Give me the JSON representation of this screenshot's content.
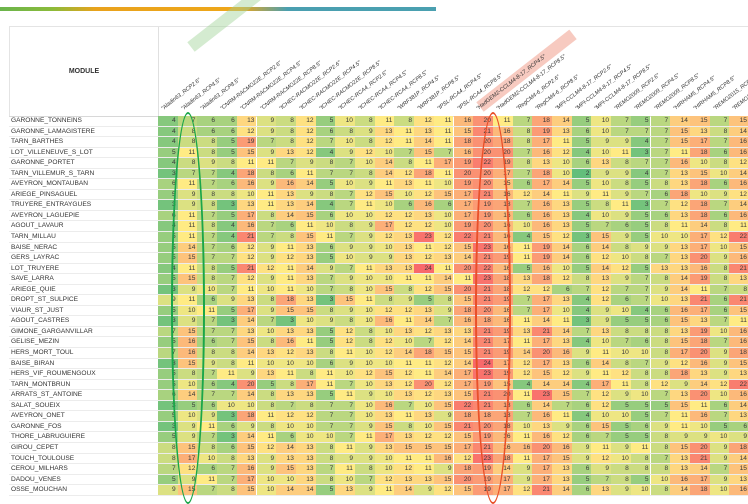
{
  "header": {
    "module_label": "MODULE"
  },
  "columns": [
    "\"Aladin63_RCP2.6\"",
    "\"Aladin63_RCP4.5\"",
    "\"Aladin63_RCP8.5\"",
    "\"CNRM-RACMO22E_RCP2.6\"",
    "\"CNRM-RACMO22E_RCP4.5\"",
    "\"CNRM-RACMO22E_RCP8.5\"",
    "\"ICHEC-RACMO22E_RCP2.6\"",
    "\"ICHEC-RACMO22E_RCP4.5\"",
    "\"ICHEC-RACMO22E_RCP8.5\"",
    "\"ICHEC-RCA4_RCP2.6\"",
    "\"ICHEC-RCA4_RCP4.5\"",
    "\"ICHEC-RCA4_RCP8.5\"",
    "\"WRF381P_RCP4.5\"",
    "\"WRF381P_RCP8.5\"",
    "\"IPSL-RCA4_RCP4.5\"",
    "\"IPSL-RCA4_RCP8.5\"",
    "\"HadGEM2-CCLM4-8-17_RCP4.5\"",
    "\"HadGEM2-CCLM4-8-17_RCP8.5\"",
    "\"RegCM4-6_RCP2.6\"",
    "\"RegCM4-6_RCP8.5\"",
    "\"MPI-CCLM4-8-17_RCP2.6\"",
    "\"MPI-CCLM4-8-17_RCP4.5\"",
    "\"MPI-CCLM4-8-17_RCP8.5\"",
    "\"REMO2009_RCP2.6\"",
    "\"REMO2009_RCP4.5\"",
    "\"REMO2009_RCP8.5\"",
    "\"HIRHAM5_RCP4.5\"",
    "\"HIRHAM5_RCP8.5\"",
    "\"REMO2015_RCP2.6\"",
    "\"REMO2015_RCP8.5\""
  ],
  "highlights": {
    "green_column_index": 1,
    "red_column_index": 17
  },
  "colors": {
    "low": "#63be7b",
    "mid": "#ffeb84",
    "high": "#f8696b"
  },
  "rows": [
    {
      "name": "GARONNE_TONNEINS",
      "values": [
        4,
        7,
        6,
        6,
        13,
        9,
        8,
        12,
        5,
        10,
        8,
        11,
        8,
        12,
        11,
        16,
        20,
        11,
        7,
        18,
        14,
        5,
        10,
        7,
        5,
        7,
        14,
        15,
        7,
        15
      ]
    },
    {
      "name": "GARONNE_LAMAGISTERE",
      "values": [
        4,
        8,
        6,
        6,
        12,
        9,
        8,
        12,
        6,
        8,
        9,
        13,
        11,
        13,
        11,
        15,
        21,
        16,
        8,
        19,
        13,
        6,
        10,
        7,
        7,
        7,
        15,
        13,
        8,
        14
      ]
    },
    {
      "name": "TARN_BARTHES",
      "values": [
        4,
        8,
        8,
        5,
        19,
        7,
        8,
        12,
        7,
        10,
        8,
        12,
        11,
        14,
        11,
        18,
        20,
        18,
        8,
        17,
        11,
        5,
        9,
        9,
        4,
        7,
        15,
        17,
        7,
        16
      ]
    },
    {
      "name": "LOT_VILLENEUVE_S_LOT",
      "values": [
        5,
        11,
        8,
        5,
        15,
        9,
        13,
        12,
        4,
        9,
        12,
        10,
        7,
        15,
        7,
        16,
        20,
        20,
        7,
        16,
        12,
        4,
        10,
        11,
        3,
        7,
        11,
        18,
        6,
        16
      ]
    },
    {
      "name": "GARONNE_PORTET",
      "values": [
        4,
        8,
        9,
        8,
        11,
        11,
        7,
        9,
        8,
        7,
        10,
        14,
        8,
        11,
        17,
        19,
        22,
        19,
        8,
        13,
        10,
        6,
        13,
        8,
        7,
        7,
        16,
        10,
        8,
        12
      ]
    },
    {
      "name": "TARN_VILLEMUR_S_TARN",
      "values": [
        3,
        7,
        7,
        4,
        18,
        8,
        6,
        11,
        7,
        7,
        8,
        14,
        12,
        18,
        11,
        20,
        20,
        17,
        7,
        18,
        10,
        2,
        9,
        9,
        4,
        7,
        13,
        15,
        10,
        14
      ]
    },
    {
      "name": "AVEYRON_MONTAUBAN",
      "values": [
        6,
        11,
        7,
        6,
        16,
        9,
        16,
        14,
        5,
        10,
        9,
        11,
        13,
        11,
        10,
        19,
        20,
        15,
        6,
        17,
        14,
        5,
        10,
        8,
        5,
        8,
        13,
        18,
        6,
        16
      ]
    },
    {
      "name": "ARIEGE_PINSAGUEL",
      "values": [
        5,
        9,
        8,
        8,
        10,
        11,
        13,
        9,
        8,
        7,
        12,
        15,
        10,
        12,
        15,
        17,
        21,
        16,
        12,
        14,
        11,
        9,
        11,
        9,
        7,
        6,
        18,
        10,
        9,
        12
      ]
    },
    {
      "name": "TRUYERE_ENTRAYGUES",
      "values": [
        3,
        9,
        8,
        3,
        13,
        11,
        13,
        14,
        4,
        7,
        11,
        10,
        6,
        16,
        6,
        17,
        19,
        18,
        7,
        16,
        13,
        5,
        8,
        11,
        3,
        7,
        12,
        18,
        7,
        14
      ]
    },
    {
      "name": "AVEYRON_LAGUEPIE",
      "values": [
        6,
        11,
        7,
        5,
        17,
        8,
        14,
        15,
        6,
        10,
        10,
        12,
        12,
        13,
        10,
        17,
        19,
        16,
        6,
        16,
        13,
        4,
        10,
        9,
        5,
        6,
        13,
        18,
        6,
        16
      ]
    },
    {
      "name": "AGOUT_LAVAUR",
      "values": [
        4,
        11,
        8,
        4,
        16,
        7,
        6,
        11,
        10,
        8,
        9,
        17,
        12,
        12,
        10,
        19,
        20,
        16,
        10,
        16,
        13,
        5,
        7,
        6,
        5,
        8,
        11,
        14,
        8,
        11
      ]
    },
    {
      "name": "TARN_MILLAU",
      "values": [
        5,
        11,
        7,
        4,
        21,
        7,
        8,
        15,
        11,
        7,
        9,
        12,
        13,
        23,
        12,
        22,
        21,
        16,
        4,
        15,
        12,
        3,
        15,
        9,
        5,
        10,
        10,
        17,
        12,
        22
      ]
    },
    {
      "name": "BAISE_NERAC",
      "values": [
        5,
        14,
        7,
        6,
        12,
        9,
        11,
        13,
        6,
        9,
        9,
        10,
        13,
        11,
        12,
        15,
        23,
        16,
        11,
        19,
        14,
        6,
        14,
        8,
        9,
        9,
        13,
        17,
        10,
        15
      ]
    },
    {
      "name": "GERS_LAYRAC",
      "values": [
        5,
        15,
        7,
        7,
        12,
        9,
        12,
        13,
        5,
        10,
        9,
        9,
        13,
        12,
        13,
        14,
        21,
        19,
        11,
        19,
        14,
        6,
        12,
        10,
        8,
        7,
        13,
        20,
        9,
        16
      ]
    },
    {
      "name": "LOT_TRUYERE",
      "values": [
        4,
        11,
        8,
        5,
        21,
        12,
        11,
        14,
        9,
        7,
        11,
        13,
        13,
        24,
        11,
        20,
        22,
        16,
        5,
        16,
        10,
        5,
        14,
        12,
        5,
        13,
        13,
        16,
        8,
        21
      ]
    },
    {
      "name": "SAVE_LARRA",
      "values": [
        5,
        15,
        8,
        7,
        12,
        9,
        11,
        13,
        7,
        9,
        10,
        10,
        11,
        11,
        14,
        11,
        23,
        18,
        13,
        18,
        12,
        8,
        13,
        9,
        7,
        8,
        14,
        19,
        8,
        13
      ]
    },
    {
      "name": "ARIEGE_QUIE",
      "values": [
        3,
        9,
        10,
        7,
        11,
        10,
        11,
        10,
        7,
        8,
        10,
        15,
        8,
        12,
        15,
        20,
        21,
        18,
        12,
        12,
        6,
        7,
        12,
        7,
        7,
        9,
        14,
        11,
        7,
        8
      ]
    },
    {
      "name": "DROPT_ST_SULPICE",
      "values": [
        9,
        11,
        6,
        9,
        13,
        8,
        18,
        13,
        3,
        15,
        11,
        8,
        9,
        5,
        8,
        15,
        21,
        19,
        7,
        17,
        13,
        4,
        12,
        6,
        7,
        10,
        13,
        21,
        6,
        21
      ]
    },
    {
      "name": "VIAUR_ST_JUST",
      "values": [
        5,
        10,
        11,
        5,
        17,
        9,
        15,
        15,
        8,
        9,
        10,
        12,
        12,
        13,
        9,
        18,
        20,
        16,
        7,
        17,
        10,
        4,
        9,
        10,
        4,
        6,
        16,
        17,
        6,
        15
      ]
    },
    {
      "name": "AGOUT_CASTRES",
      "values": [
        3,
        9,
        7,
        3,
        14,
        7,
        3,
        10,
        9,
        8,
        10,
        16,
        11,
        14,
        7,
        16,
        18,
        16,
        11,
        14,
        11,
        3,
        9,
        5,
        5,
        6,
        15,
        13,
        7,
        11
      ]
    },
    {
      "name": "GIMONE_GARGANVILLAR",
      "values": [
        7,
        15,
        7,
        7,
        13,
        10,
        13,
        13,
        5,
        12,
        8,
        10,
        13,
        12,
        13,
        13,
        21,
        19,
        13,
        21,
        14,
        7,
        13,
        8,
        8,
        8,
        13,
        19,
        10,
        16
      ]
    },
    {
      "name": "GELISE_MEZIN",
      "values": [
        5,
        16,
        6,
        7,
        15,
        8,
        16,
        11,
        5,
        12,
        8,
        12,
        10,
        7,
        12,
        14,
        21,
        17,
        11,
        17,
        13,
        4,
        10,
        7,
        6,
        8,
        15,
        18,
        7,
        16
      ]
    },
    {
      "name": "HERS_MORT_TOUL",
      "values": [
        7,
        16,
        8,
        8,
        14,
        13,
        12,
        13,
        8,
        11,
        10,
        12,
        14,
        18,
        15,
        15,
        21,
        19,
        14,
        20,
        16,
        9,
        11,
        10,
        10,
        8,
        17,
        20,
        9,
        18
      ]
    },
    {
      "name": "BAISE_BIRAN",
      "values": [
        3,
        15,
        9,
        8,
        11,
        10,
        10,
        10,
        6,
        9,
        10,
        10,
        11,
        11,
        12,
        14,
        24,
        17,
        12,
        17,
        13,
        6,
        14,
        8,
        7,
        9,
        12,
        16,
        9,
        15
      ]
    },
    {
      "name": "HERS_VIF_ROUMENGOUX",
      "values": [
        5,
        8,
        7,
        11,
        9,
        13,
        11,
        8,
        11,
        10,
        12,
        15,
        12,
        11,
        14,
        17,
        23,
        19,
        12,
        15,
        12,
        9,
        11,
        12,
        8,
        8,
        18,
        13,
        9,
        13
      ]
    },
    {
      "name": "TARN_MONTBRUN",
      "values": [
        5,
        10,
        6,
        4,
        20,
        5,
        8,
        17,
        11,
        7,
        10,
        13,
        12,
        20,
        12,
        17,
        19,
        15,
        4,
        14,
        14,
        4,
        17,
        11,
        8,
        12,
        9,
        14,
        12,
        22
      ]
    },
    {
      "name": "ARRATS_ST_ANTOINE",
      "values": [
        6,
        14,
        7,
        7,
        14,
        8,
        13,
        13,
        5,
        11,
        9,
        10,
        13,
        12,
        13,
        15,
        21,
        20,
        11,
        23,
        15,
        7,
        12,
        9,
        10,
        7,
        13,
        20,
        10,
        16
      ]
    },
    {
      "name": "SALAT_SOUEIX",
      "values": [
        3,
        5,
        6,
        10,
        10,
        8,
        7,
        8,
        7,
        7,
        10,
        16,
        7,
        10,
        15,
        22,
        21,
        18,
        6,
        14,
        7,
        6,
        12,
        5,
        5,
        5,
        15,
        11,
        6,
        14
      ]
    },
    {
      "name": "AVEYRON_ONET",
      "values": [
        5,
        10,
        9,
        3,
        18,
        11,
        12,
        12,
        7,
        7,
        10,
        13,
        11,
        13,
        9,
        18,
        18,
        18,
        7,
        16,
        11,
        4,
        10,
        10,
        5,
        7,
        11,
        16,
        7,
        13
      ]
    },
    {
      "name": "GARONNE_FOS",
      "values": [
        3,
        9,
        11,
        6,
        9,
        8,
        10,
        10,
        7,
        7,
        9,
        15,
        8,
        10,
        15,
        21,
        20,
        18,
        10,
        13,
        9,
        6,
        15,
        5,
        6,
        9,
        11,
        10,
        5,
        6
      ]
    },
    {
      "name": "THORE_LABRUGUIERE",
      "values": [
        5,
        9,
        7,
        3,
        14,
        11,
        6,
        10,
        10,
        7,
        11,
        17,
        13,
        12,
        12,
        15,
        19,
        16,
        11,
        16,
        12,
        6,
        7,
        5,
        5,
        8,
        9,
        9,
        10,
        9
      ]
    },
    {
      "name": "GIROU_CEPET",
      "values": [
        8,
        15,
        8,
        6,
        15,
        12,
        14,
        13,
        8,
        11,
        9,
        13,
        15,
        15,
        15,
        17,
        21,
        16,
        16,
        20,
        16,
        9,
        11,
        9,
        11,
        8,
        15,
        20,
        9,
        18
      ]
    },
    {
      "name": "TOUCH_TOULOUSE",
      "values": [
        8,
        17,
        10,
        8,
        13,
        9,
        13,
        13,
        8,
        9,
        9,
        10,
        11,
        11,
        16,
        12,
        23,
        18,
        11,
        17,
        15,
        9,
        12,
        10,
        8,
        7,
        13,
        21,
        9,
        14
      ]
    },
    {
      "name": "CEROU_MILHARS",
      "values": [
        7,
        12,
        6,
        7,
        16,
        9,
        15,
        13,
        7,
        11,
        8,
        10,
        12,
        11,
        9,
        18,
        19,
        14,
        9,
        17,
        13,
        6,
        9,
        8,
        8,
        8,
        13,
        14,
        7,
        15
      ]
    },
    {
      "name": "DADOU_VENES",
      "values": [
        5,
        9,
        11,
        7,
        17,
        10,
        10,
        13,
        8,
        10,
        7,
        12,
        13,
        13,
        15,
        20,
        19,
        17,
        9,
        17,
        13,
        5,
        7,
        8,
        5,
        10,
        16,
        17,
        9,
        13
      ]
    },
    {
      "name": "OSSE_MOUCHAN",
      "values": [
        9,
        15,
        7,
        8,
        15,
        10,
        14,
        14,
        5,
        13,
        9,
        11,
        14,
        9,
        12,
        15,
        19,
        17,
        12,
        21,
        14,
        6,
        13,
        9,
        10,
        8,
        14,
        18,
        10,
        16
      ]
    }
  ]
}
